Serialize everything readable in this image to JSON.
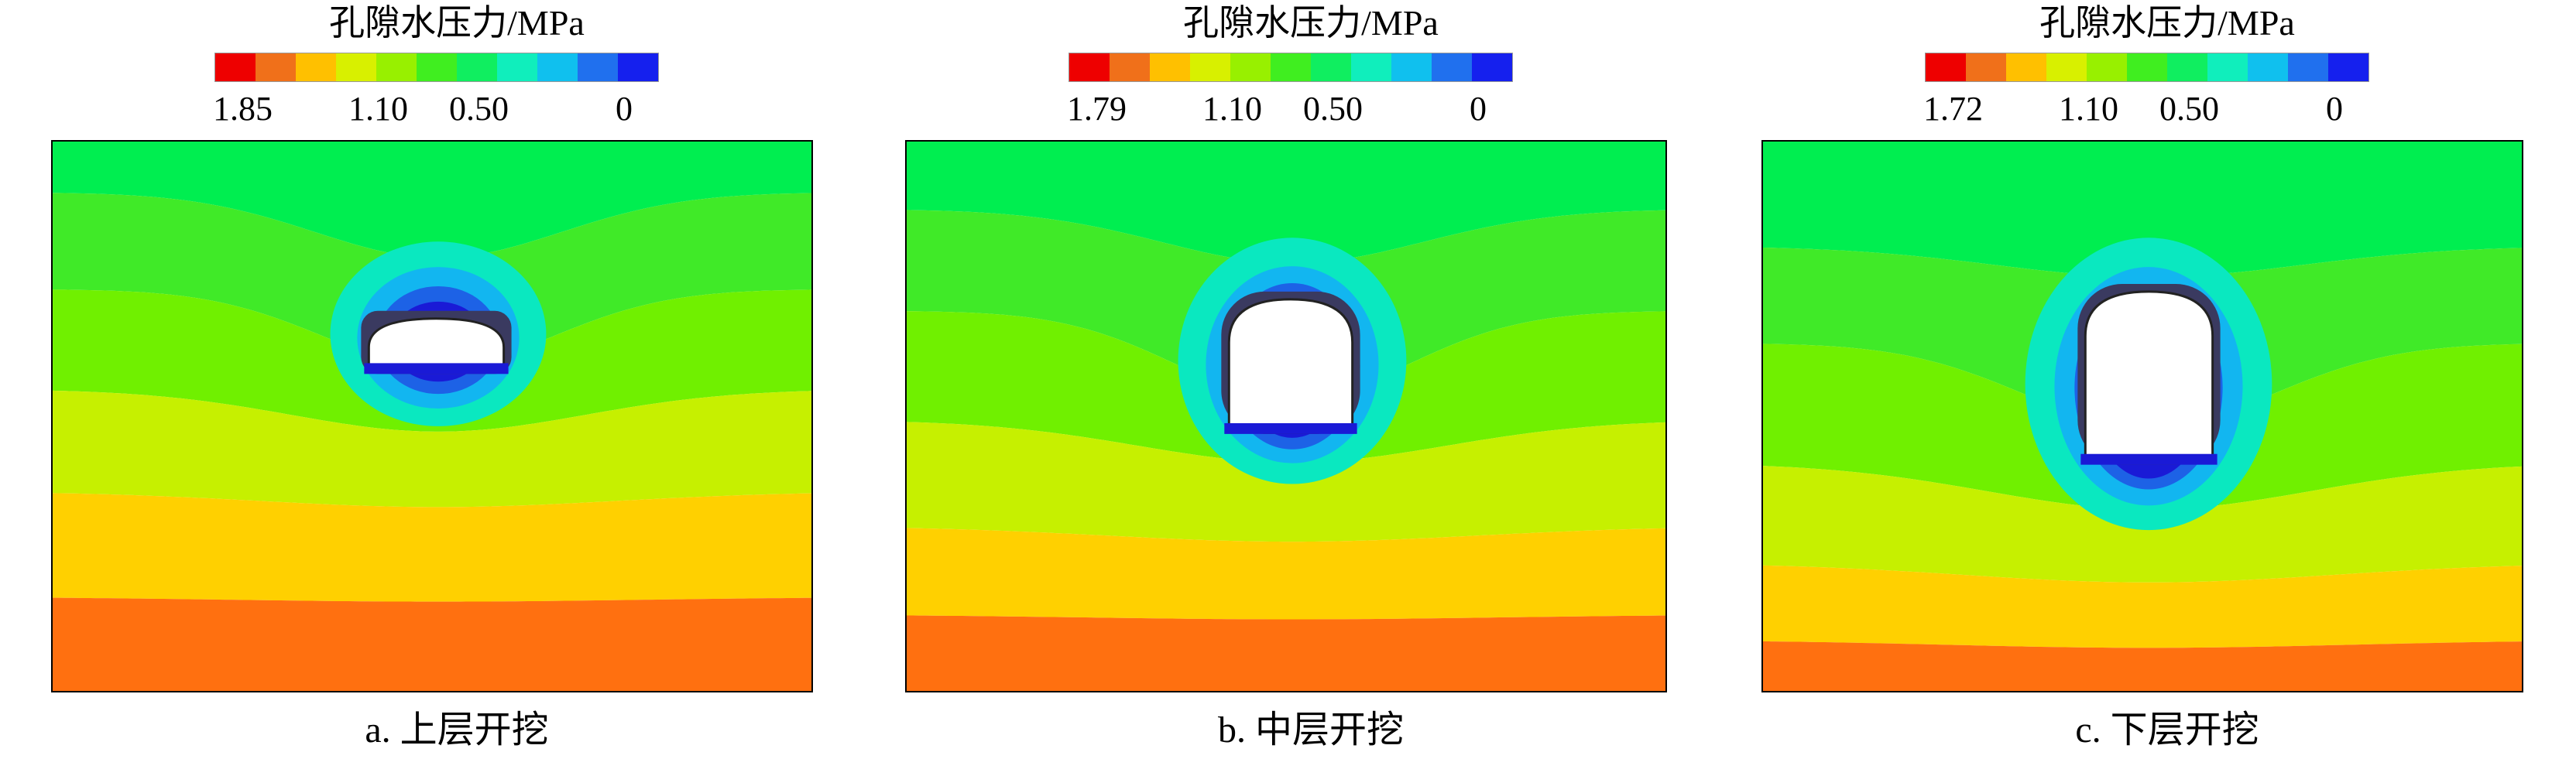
{
  "legend_title": "孔隙水压力/MPa",
  "colormap": [
    "#ee0000",
    "#f0701a",
    "#ffc000",
    "#d8f000",
    "#98f000",
    "#40ee20",
    "#10ee60",
    "#10eebc",
    "#10c0ee",
    "#2070ee",
    "#1520ee"
  ],
  "contour_fills": [
    "#00ee50",
    "#40ea28",
    "#70f000",
    "#c6f000",
    "#ffd000",
    "#ff7010"
  ],
  "inner_fills": [
    "#0ae8c0",
    "#12b6f0",
    "#1d62e6",
    "#1a1ad6"
  ],
  "panels": [
    {
      "caption": "a. 上层开挖",
      "ticks": [
        "1.85",
        "1.10",
        "0.50",
        "0"
      ]
    },
    {
      "caption": "b. 中层开挖",
      "ticks": [
        "1.79",
        "1.10",
        "0.50",
        "0"
      ]
    },
    {
      "caption": "c. 下层开挖",
      "ticks": [
        "1.72",
        "1.10",
        "0.50",
        "0"
      ]
    }
  ]
}
